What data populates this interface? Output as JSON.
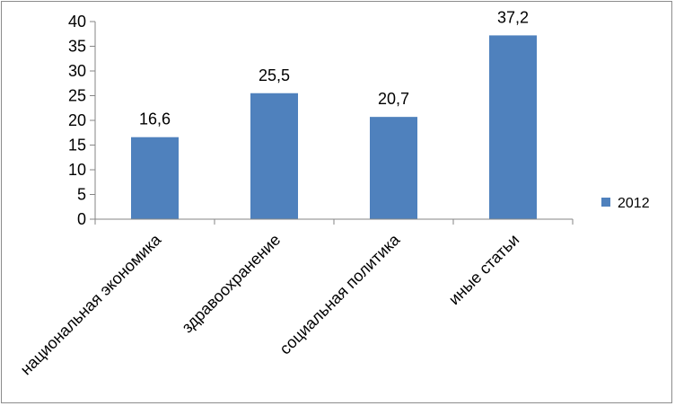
{
  "chart_data": {
    "type": "bar",
    "categories": [
      "национальная экономика",
      "здравоохранение",
      "социальная политика",
      "иные статьи"
    ],
    "series": [
      {
        "name": "2012",
        "values": [
          16.6,
          25.5,
          20.7,
          37.2
        ],
        "color": "#4f81bd"
      }
    ],
    "data_labels": [
      "16,6",
      "25,5",
      "20,7",
      "37,2"
    ],
    "y_ticks": [
      "0",
      "5",
      "10",
      "15",
      "20",
      "25",
      "30",
      "35",
      "40"
    ],
    "ylim": [
      0,
      40
    ],
    "ytick_step": 5,
    "title": "",
    "xlabel": "",
    "ylabel": "",
    "grid": false,
    "legend_position": "right",
    "colors": {
      "bar": "#4f81bd",
      "axis": "#868686",
      "border": "#8c8c8c"
    }
  }
}
